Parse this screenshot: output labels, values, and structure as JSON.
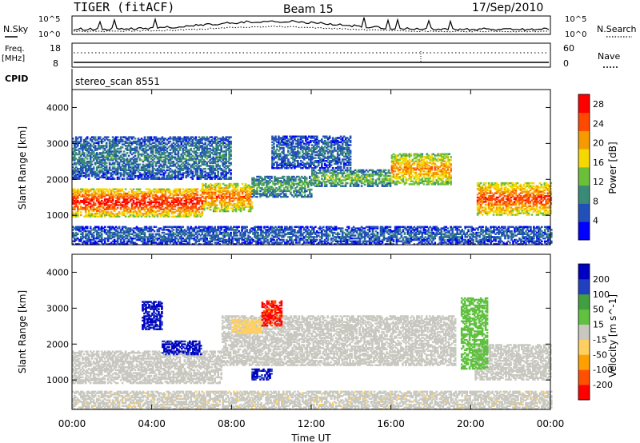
{
  "header": {
    "title": "TIGER (fitACF)",
    "beam": "Beam 15",
    "date": "17/Sep/2010"
  },
  "noise_panel": {
    "left_label": "N.Sky",
    "right_label": "N.Search",
    "tick_top": "10^5",
    "tick_bottom": "10^0"
  },
  "freq_panel": {
    "left_label_1": "Freq.",
    "left_label_2": "[MHz]",
    "right_label": "Nave",
    "left_ticks": [
      "18",
      "8"
    ],
    "right_ticks": [
      "60",
      "0"
    ]
  },
  "cpid": {
    "label": "CPID",
    "value": "stereo_scan 8551"
  },
  "x_axis": {
    "label": "Time UT",
    "ticks": [
      "00:00",
      "04:00",
      "08:00",
      "12:00",
      "16:00",
      "20:00",
      "00:00"
    ]
  },
  "chart_data": [
    {
      "type": "heatmap",
      "name": "power",
      "ylabel": "Slant Range [km]",
      "xlim": [
        0,
        24
      ],
      "ylim": [
        180,
        4500
      ],
      "yticks": [
        "1000",
        "2000",
        "3000",
        "4000"
      ],
      "colorbar": {
        "label": "Power [dB]",
        "ticks": [
          "4",
          "8",
          "12",
          "16",
          "20",
          "24",
          "28"
        ],
        "range": [
          0,
          30
        ],
        "colors": [
          "#0000ff",
          "#2050b8",
          "#3a8a78",
          "#6cbf38",
          "#f5d800",
          "#f59a00",
          "#ff4800",
          "#ff0000"
        ]
      },
      "bands": [
        {
          "t0": 0,
          "t1": 6.5,
          "r0": 950,
          "r1": 1750,
          "level": 28
        },
        {
          "t0": 6.5,
          "t1": 9,
          "r0": 1100,
          "r1": 1900,
          "level": 24
        },
        {
          "t0": 9,
          "t1": 12,
          "r0": 1500,
          "r1": 2100,
          "level": 12
        },
        {
          "t0": 12,
          "t1": 16,
          "r0": 1800,
          "r1": 2250,
          "level": 14
        },
        {
          "t0": 16,
          "t1": 19,
          "r0": 1850,
          "r1": 2700,
          "level": 22
        },
        {
          "t0": 20.3,
          "t1": 24,
          "r0": 1000,
          "r1": 1900,
          "level": 26
        },
        {
          "t0": 0,
          "t1": 8,
          "r0": 2000,
          "r1": 3200,
          "level": 9
        },
        {
          "t0": 10,
          "t1": 14,
          "r0": 2300,
          "r1": 3200,
          "level": 8
        },
        {
          "t0": 0,
          "t1": 24,
          "r0": 180,
          "r1": 700,
          "level": 7
        }
      ]
    },
    {
      "type": "heatmap",
      "name": "velocity",
      "ylabel": "Slant Range [km]",
      "xlim": [
        0,
        24
      ],
      "ylim": [
        180,
        4500
      ],
      "yticks": [
        "1000",
        "2000",
        "3000",
        "4000"
      ],
      "colorbar": {
        "label": "Velocity [m s^-1]",
        "ticks": [
          "200",
          "100",
          "50",
          "15",
          "-15",
          "-50",
          "-100",
          "-200"
        ],
        "range": [
          -250,
          250
        ],
        "colors": [
          "#ff0000",
          "#ff5000",
          "#ffa000",
          "#ffd060",
          "#c8c8c0",
          "#60c040",
          "#40a040",
          "#2040c0",
          "#0000c0"
        ]
      },
      "bands": [
        {
          "t0": 0,
          "t1": 7.5,
          "r0": 900,
          "r1": 1800,
          "velocity": 0
        },
        {
          "t0": 7.5,
          "t1": 19.2,
          "r0": 1400,
          "r1": 2800,
          "velocity": 0
        },
        {
          "t0": 20.2,
          "t1": 24,
          "r0": 1000,
          "r1": 2000,
          "velocity": 0
        },
        {
          "t0": 19.5,
          "t1": 20.8,
          "r0": 1300,
          "r1": 3300,
          "velocity": 60
        },
        {
          "t0": 4.5,
          "t1": 6.5,
          "r0": 1700,
          "r1": 2100,
          "velocity": 200
        },
        {
          "t0": 9,
          "t1": 10,
          "r0": 1000,
          "r1": 1300,
          "velocity": 200
        },
        {
          "t0": 3.5,
          "t1": 4.5,
          "r0": 2400,
          "r1": 3200,
          "velocity": 200
        },
        {
          "t0": 8,
          "t1": 9.5,
          "r0": 2300,
          "r1": 2700,
          "velocity": -50
        },
        {
          "t0": 9.5,
          "t1": 10.5,
          "r0": 2500,
          "r1": 3200,
          "velocity": -200
        },
        {
          "t0": 0,
          "t1": 24,
          "r0": 180,
          "r1": 700,
          "velocity": -15
        }
      ]
    }
  ],
  "colors": {
    "axis": "#000000",
    "background": "#ffffff"
  }
}
